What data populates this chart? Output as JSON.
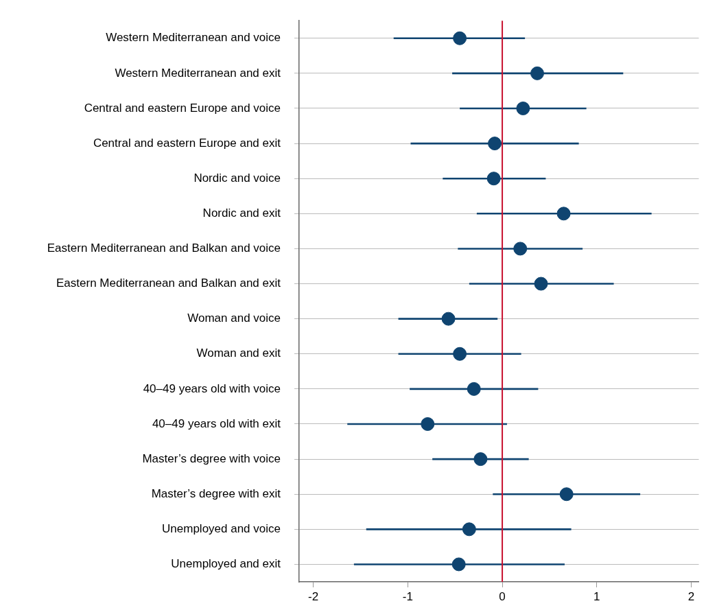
{
  "chart_data": {
    "type": "scatter",
    "orientation": "horizontal",
    "categories": [
      "Western Mediterranean and voice",
      "Western Mediterranean and exit",
      "Central and eastern Europe and voice",
      "Central and eastern Europe and exit",
      "Nordic and voice",
      "Nordic and exit",
      "Eastern Mediterranean and Balkan and voice",
      "Eastern Mediterranean and Balkan and exit",
      "Woman and voice",
      "Woman and exit",
      "40–49 years old with voice",
      "40–49 years old with exit",
      "Master’s degree with voice",
      "Master’s degree with exit",
      "Unemployed and voice",
      "Unemployed and exit"
    ],
    "values": [
      -0.45,
      0.37,
      0.22,
      -0.08,
      -0.09,
      0.65,
      0.19,
      0.41,
      -0.57,
      -0.45,
      -0.3,
      -0.79,
      -0.23,
      0.68,
      -0.35,
      -0.46
    ],
    "errors": [
      [
        -1.15,
        0.24
      ],
      [
        -0.53,
        1.28
      ],
      [
        -0.45,
        0.89
      ],
      [
        -0.97,
        0.81
      ],
      [
        -0.63,
        0.46
      ],
      [
        -0.27,
        1.58
      ],
      [
        -0.47,
        0.85
      ],
      [
        -0.35,
        1.18
      ],
      [
        -1.1,
        -0.05
      ],
      [
        -1.1,
        0.2
      ],
      [
        -0.98,
        0.38
      ],
      [
        -1.64,
        0.05
      ],
      [
        -0.74,
        0.28
      ],
      [
        -0.1,
        1.46
      ],
      [
        -1.44,
        0.73
      ],
      [
        -1.57,
        0.66
      ]
    ],
    "color": "#0f4470",
    "xlim": [
      -2.15,
      2.08
    ],
    "xticks": [
      -2,
      -1,
      0,
      1,
      2
    ],
    "ref_lines": [
      {
        "axis": "x",
        "value": 0,
        "color": "#c8102e"
      }
    ],
    "grid": "y",
    "marker": "circle"
  }
}
